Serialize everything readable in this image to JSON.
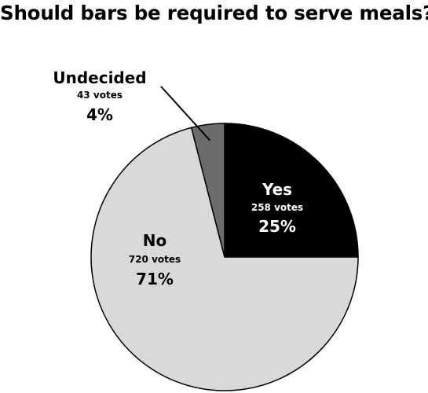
{
  "chart_data": {
    "type": "pie",
    "title": "Should bars be required to serve meals?",
    "start": "top, clockwise",
    "slices": [
      {
        "label": "Yes",
        "votes": "258 votes",
        "percent_label": "25%",
        "value": 25,
        "color": "#000000",
        "text_color": "#ffffff"
      },
      {
        "label": "No",
        "votes": "720 votes",
        "percent_label": "71%",
        "value": 71,
        "color": "#d9d9d9",
        "text_color": "#000000"
      },
      {
        "label": "Undecided",
        "votes": "43 votes",
        "percent_label": "4%",
        "value": 4,
        "color": "#6b6b6b",
        "text_color": "#000000"
      }
    ]
  }
}
